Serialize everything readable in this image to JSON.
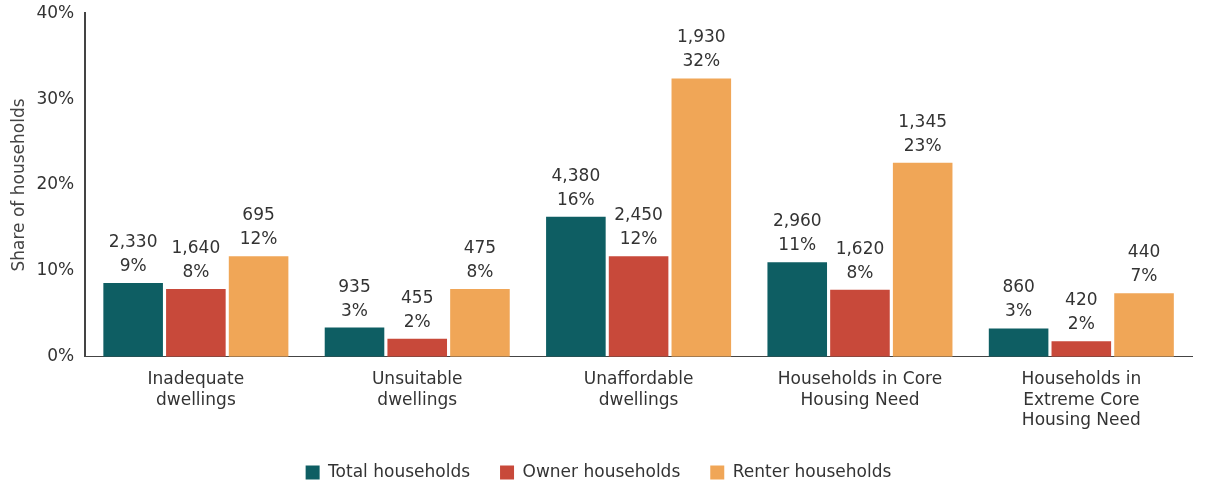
{
  "chart_data": {
    "type": "bar",
    "ylabel": "Share of households",
    "categories": [
      "Inadequate dwellings",
      "Unsuitable dwellings",
      "Unaffordable dwellings",
      "Households in Core Housing Need",
      "Households in Extreme Core Housing Need"
    ],
    "series": [
      {
        "name": "Total households",
        "color": "#0e5e63",
        "values": [
          8.6,
          3.4,
          16.3,
          11.0,
          3.3
        ],
        "value_labels": [
          "2,330\n9%",
          "935\n3%",
          "4,380\n16%",
          "2,960\n11%",
          "860\n3%"
        ]
      },
      {
        "name": "Owner households",
        "color": "#c8493a",
        "values": [
          7.9,
          2.1,
          11.7,
          7.8,
          1.8
        ],
        "value_labels": [
          "1,640\n8%",
          "455\n2%",
          "2,450\n12%",
          "1,620\n8%",
          "420\n2%"
        ]
      },
      {
        "name": "Renter households",
        "color": "#f0a657",
        "values": [
          11.7,
          7.9,
          32.4,
          22.6,
          7.4
        ],
        "value_labels": [
          "695\n12%",
          "475\n8%",
          "1,930\n32%",
          "1,345\n23%",
          "440\n7%"
        ]
      }
    ],
    "ylim": [
      0,
      40
    ],
    "yticks": [
      {
        "value": 0,
        "label": "0%"
      },
      {
        "value": 10,
        "label": "10%"
      },
      {
        "value": 20,
        "label": "20%"
      },
      {
        "value": 30,
        "label": "30%"
      },
      {
        "value": 40,
        "label": "40%"
      }
    ],
    "grid": false,
    "legend": "bottom"
  }
}
